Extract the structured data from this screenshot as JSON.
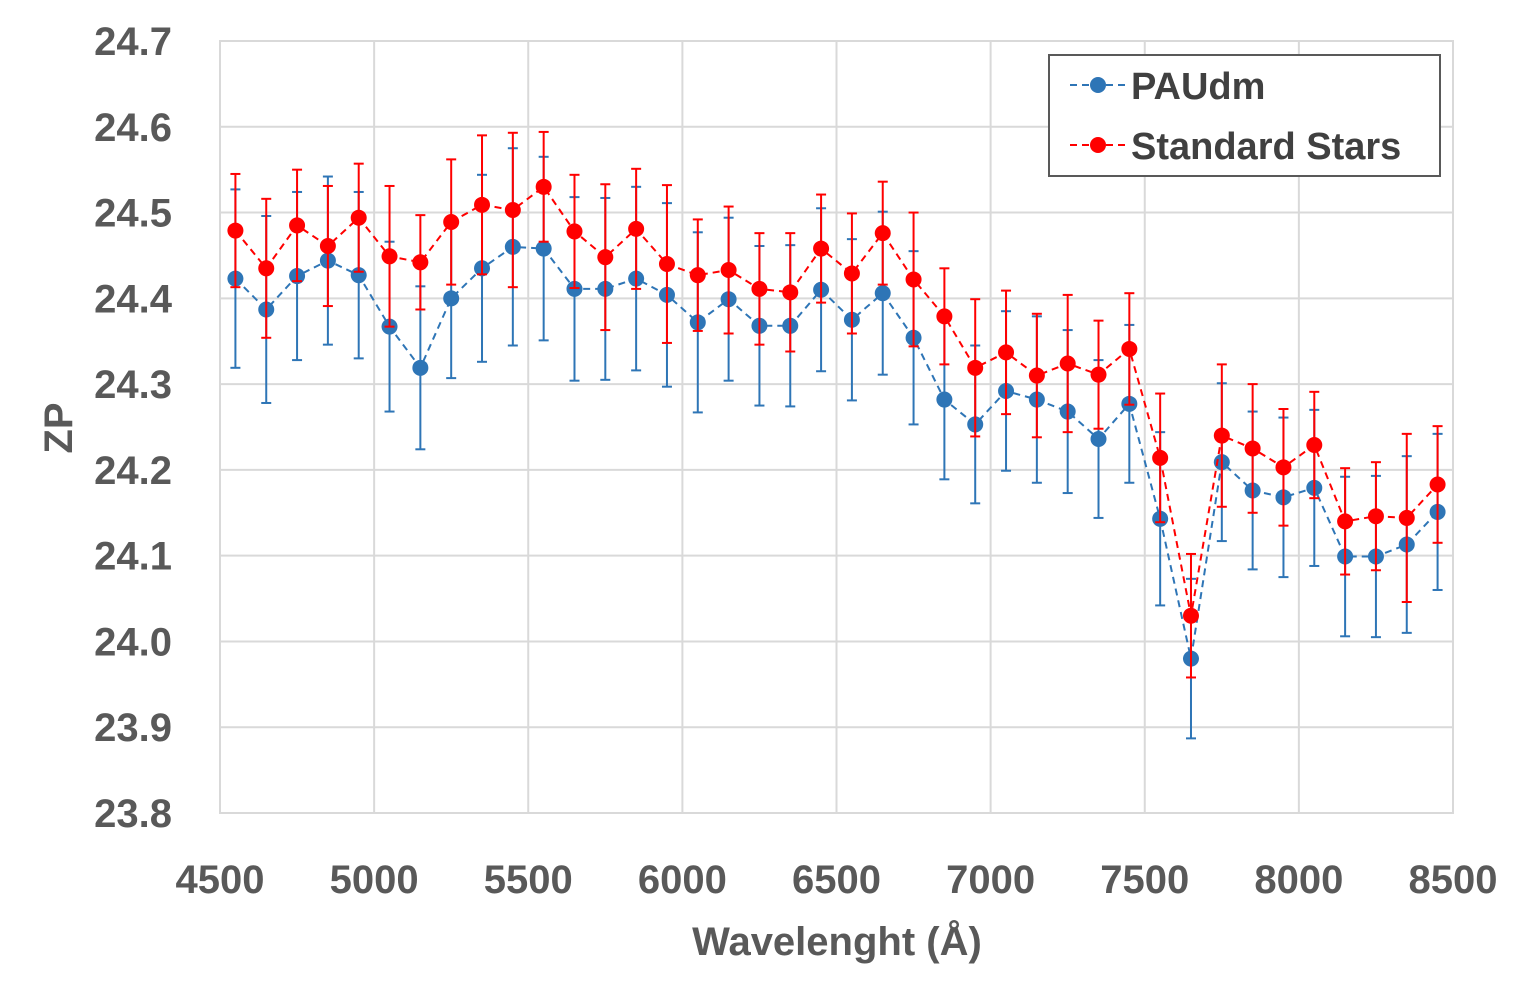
{
  "chart_data": {
    "type": "scatter",
    "xlabel": "Wavelenght (Å)",
    "ylabel": "ZP",
    "xlim": [
      4500,
      8500
    ],
    "ylim": [
      23.8,
      24.7
    ],
    "xticks": [
      "4500",
      "5000",
      "5500",
      "6000",
      "6500",
      "7000",
      "7500",
      "8000",
      "8500"
    ],
    "yticks": [
      "23.8",
      "23.9",
      "24.0",
      "24.1",
      "24.2",
      "24.3",
      "24.4",
      "24.5",
      "24.6",
      "24.7"
    ],
    "grid": true,
    "legend_position": "top-right",
    "x": [
      4550,
      4650,
      4750,
      4850,
      4950,
      5050,
      5150,
      5250,
      5350,
      5450,
      5550,
      5650,
      5750,
      5850,
      5950,
      6050,
      6150,
      6250,
      6350,
      6450,
      6550,
      6650,
      6750,
      6850,
      6950,
      7050,
      7150,
      7250,
      7350,
      7450,
      7550,
      7650,
      7750,
      7850,
      7950,
      8050,
      8150,
      8250,
      8350,
      8450
    ],
    "series": [
      {
        "name": "PAUdm",
        "color": "#2e75b6",
        "values": [
          24.423,
          24.387,
          24.426,
          24.444,
          24.427,
          24.367,
          24.319,
          24.4,
          24.435,
          24.46,
          24.458,
          24.411,
          24.411,
          24.423,
          24.404,
          24.372,
          24.399,
          24.368,
          24.368,
          24.41,
          24.375,
          24.406,
          24.354,
          24.282,
          24.253,
          24.292,
          24.282,
          24.268,
          24.236,
          24.277,
          24.143,
          23.98,
          24.209,
          24.176,
          24.168,
          24.179,
          24.099,
          24.099,
          24.113,
          24.151
        ],
        "errors": [
          0.104,
          0.109,
          0.098,
          0.098,
          0.097,
          0.099,
          0.095,
          0.093,
          0.109,
          0.115,
          0.107,
          0.107,
          0.106,
          0.107,
          0.107,
          0.105,
          0.095,
          0.093,
          0.094,
          0.095,
          0.094,
          0.095,
          0.101,
          0.093,
          0.092,
          0.093,
          0.097,
          0.095,
          0.092,
          0.092,
          0.101,
          0.093,
          0.092,
          0.092,
          0.093,
          0.091,
          0.093,
          0.094,
          0.103,
          0.091
        ]
      },
      {
        "name": "Standard Stars",
        "color": "#ff0000",
        "values": [
          24.479,
          24.435,
          24.485,
          24.461,
          24.494,
          24.449,
          24.442,
          24.489,
          24.509,
          24.503,
          24.53,
          24.478,
          24.448,
          24.481,
          24.44,
          24.427,
          24.433,
          24.411,
          24.407,
          24.458,
          24.429,
          24.476,
          24.422,
          24.379,
          24.319,
          24.337,
          24.31,
          24.324,
          24.311,
          24.341,
          24.214,
          24.03,
          24.24,
          24.225,
          24.203,
          24.229,
          24.14,
          24.146,
          24.144,
          24.183
        ],
        "errors": [
          0.066,
          0.081,
          0.065,
          0.07,
          0.063,
          0.082,
          0.055,
          0.073,
          0.081,
          0.09,
          0.064,
          0.066,
          0.085,
          0.07,
          0.092,
          0.065,
          0.074,
          0.065,
          0.069,
          0.063,
          0.07,
          0.06,
          0.078,
          0.056,
          0.08,
          0.072,
          0.072,
          0.08,
          0.063,
          0.065,
          0.075,
          0.072,
          0.083,
          0.075,
          0.068,
          0.062,
          0.062,
          0.063,
          0.098,
          0.068
        ]
      }
    ]
  }
}
